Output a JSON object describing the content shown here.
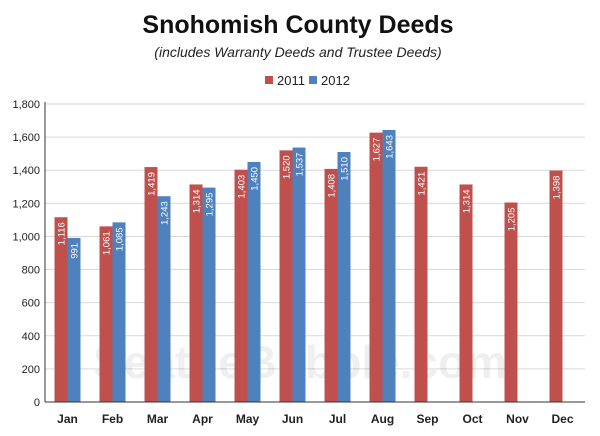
{
  "chart_data": {
    "type": "bar",
    "title": "Snohomish County Deeds",
    "subtitle": "(includes Warranty Deeds and Trustee Deeds)",
    "watermark": "SeattleBubble.com",
    "categories": [
      "Jan",
      "Feb",
      "Mar",
      "Apr",
      "May",
      "Jun",
      "Jul",
      "Aug",
      "Sep",
      "Oct",
      "Nov",
      "Dec"
    ],
    "series": [
      {
        "name": "2011",
        "color": "#c0504d",
        "values": [
          1116,
          1061,
          1419,
          1314,
          1403,
          1520,
          1408,
          1627,
          1421,
          1314,
          1205,
          1398
        ]
      },
      {
        "name": "2012",
        "color": "#4f81bd",
        "values": [
          991,
          1085,
          1243,
          1295,
          1450,
          1537,
          1510,
          1643,
          null,
          null,
          null,
          null
        ]
      }
    ],
    "data_labels": [
      [
        "1,116",
        "1,061",
        "1,419",
        "1,314",
        "1,403",
        "1,520",
        "1,408",
        "1,627",
        "1,421",
        "1,314",
        "1,205",
        "1,398"
      ],
      [
        "991",
        "1,085",
        "1,243",
        "1,295",
        "1,450",
        "1,537",
        "1,510",
        "1,643",
        "",
        "",
        "",
        ""
      ]
    ],
    "y_ticks": [
      "0",
      "200",
      "400",
      "600",
      "800",
      "1,000",
      "1,200",
      "1,400",
      "1,600",
      "1,800"
    ],
    "ylim": [
      0,
      1800
    ],
    "grid": true,
    "legend_position": "top-center"
  }
}
